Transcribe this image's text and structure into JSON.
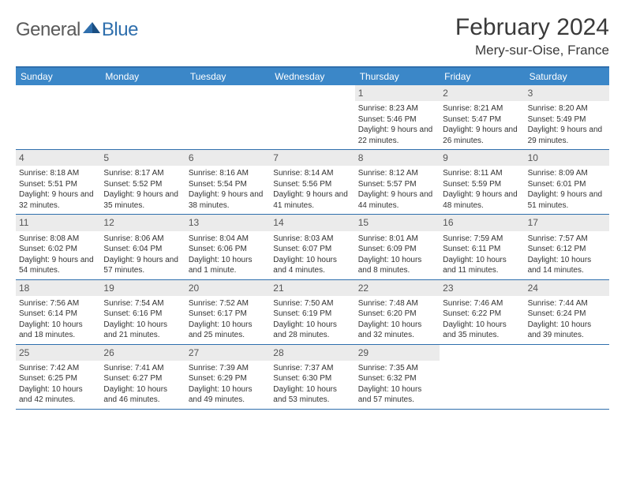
{
  "brand": {
    "general": "General",
    "blue": "Blue"
  },
  "title": "February 2024",
  "location": "Mery-sur-Oise, France",
  "colors": {
    "header_bg": "#3b87c8",
    "border": "#2f6fad",
    "daynum_bg": "#ebebeb",
    "text": "#333333"
  },
  "weekdays": [
    "Sunday",
    "Monday",
    "Tuesday",
    "Wednesday",
    "Thursday",
    "Friday",
    "Saturday"
  ],
  "weeks": [
    [
      null,
      null,
      null,
      null,
      {
        "n": "1",
        "sr": "Sunrise: 8:23 AM",
        "ss": "Sunset: 5:46 PM",
        "dl": "Daylight: 9 hours and 22 minutes."
      },
      {
        "n": "2",
        "sr": "Sunrise: 8:21 AM",
        "ss": "Sunset: 5:47 PM",
        "dl": "Daylight: 9 hours and 26 minutes."
      },
      {
        "n": "3",
        "sr": "Sunrise: 8:20 AM",
        "ss": "Sunset: 5:49 PM",
        "dl": "Daylight: 9 hours and 29 minutes."
      }
    ],
    [
      {
        "n": "4",
        "sr": "Sunrise: 8:18 AM",
        "ss": "Sunset: 5:51 PM",
        "dl": "Daylight: 9 hours and 32 minutes."
      },
      {
        "n": "5",
        "sr": "Sunrise: 8:17 AM",
        "ss": "Sunset: 5:52 PM",
        "dl": "Daylight: 9 hours and 35 minutes."
      },
      {
        "n": "6",
        "sr": "Sunrise: 8:16 AM",
        "ss": "Sunset: 5:54 PM",
        "dl": "Daylight: 9 hours and 38 minutes."
      },
      {
        "n": "7",
        "sr": "Sunrise: 8:14 AM",
        "ss": "Sunset: 5:56 PM",
        "dl": "Daylight: 9 hours and 41 minutes."
      },
      {
        "n": "8",
        "sr": "Sunrise: 8:12 AM",
        "ss": "Sunset: 5:57 PM",
        "dl": "Daylight: 9 hours and 44 minutes."
      },
      {
        "n": "9",
        "sr": "Sunrise: 8:11 AM",
        "ss": "Sunset: 5:59 PM",
        "dl": "Daylight: 9 hours and 48 minutes."
      },
      {
        "n": "10",
        "sr": "Sunrise: 8:09 AM",
        "ss": "Sunset: 6:01 PM",
        "dl": "Daylight: 9 hours and 51 minutes."
      }
    ],
    [
      {
        "n": "11",
        "sr": "Sunrise: 8:08 AM",
        "ss": "Sunset: 6:02 PM",
        "dl": "Daylight: 9 hours and 54 minutes."
      },
      {
        "n": "12",
        "sr": "Sunrise: 8:06 AM",
        "ss": "Sunset: 6:04 PM",
        "dl": "Daylight: 9 hours and 57 minutes."
      },
      {
        "n": "13",
        "sr": "Sunrise: 8:04 AM",
        "ss": "Sunset: 6:06 PM",
        "dl": "Daylight: 10 hours and 1 minute."
      },
      {
        "n": "14",
        "sr": "Sunrise: 8:03 AM",
        "ss": "Sunset: 6:07 PM",
        "dl": "Daylight: 10 hours and 4 minutes."
      },
      {
        "n": "15",
        "sr": "Sunrise: 8:01 AM",
        "ss": "Sunset: 6:09 PM",
        "dl": "Daylight: 10 hours and 8 minutes."
      },
      {
        "n": "16",
        "sr": "Sunrise: 7:59 AM",
        "ss": "Sunset: 6:11 PM",
        "dl": "Daylight: 10 hours and 11 minutes."
      },
      {
        "n": "17",
        "sr": "Sunrise: 7:57 AM",
        "ss": "Sunset: 6:12 PM",
        "dl": "Daylight: 10 hours and 14 minutes."
      }
    ],
    [
      {
        "n": "18",
        "sr": "Sunrise: 7:56 AM",
        "ss": "Sunset: 6:14 PM",
        "dl": "Daylight: 10 hours and 18 minutes."
      },
      {
        "n": "19",
        "sr": "Sunrise: 7:54 AM",
        "ss": "Sunset: 6:16 PM",
        "dl": "Daylight: 10 hours and 21 minutes."
      },
      {
        "n": "20",
        "sr": "Sunrise: 7:52 AM",
        "ss": "Sunset: 6:17 PM",
        "dl": "Daylight: 10 hours and 25 minutes."
      },
      {
        "n": "21",
        "sr": "Sunrise: 7:50 AM",
        "ss": "Sunset: 6:19 PM",
        "dl": "Daylight: 10 hours and 28 minutes."
      },
      {
        "n": "22",
        "sr": "Sunrise: 7:48 AM",
        "ss": "Sunset: 6:20 PM",
        "dl": "Daylight: 10 hours and 32 minutes."
      },
      {
        "n": "23",
        "sr": "Sunrise: 7:46 AM",
        "ss": "Sunset: 6:22 PM",
        "dl": "Daylight: 10 hours and 35 minutes."
      },
      {
        "n": "24",
        "sr": "Sunrise: 7:44 AM",
        "ss": "Sunset: 6:24 PM",
        "dl": "Daylight: 10 hours and 39 minutes."
      }
    ],
    [
      {
        "n": "25",
        "sr": "Sunrise: 7:42 AM",
        "ss": "Sunset: 6:25 PM",
        "dl": "Daylight: 10 hours and 42 minutes."
      },
      {
        "n": "26",
        "sr": "Sunrise: 7:41 AM",
        "ss": "Sunset: 6:27 PM",
        "dl": "Daylight: 10 hours and 46 minutes."
      },
      {
        "n": "27",
        "sr": "Sunrise: 7:39 AM",
        "ss": "Sunset: 6:29 PM",
        "dl": "Daylight: 10 hours and 49 minutes."
      },
      {
        "n": "28",
        "sr": "Sunrise: 7:37 AM",
        "ss": "Sunset: 6:30 PM",
        "dl": "Daylight: 10 hours and 53 minutes."
      },
      {
        "n": "29",
        "sr": "Sunrise: 7:35 AM",
        "ss": "Sunset: 6:32 PM",
        "dl": "Daylight: 10 hours and 57 minutes."
      },
      null,
      null
    ]
  ]
}
